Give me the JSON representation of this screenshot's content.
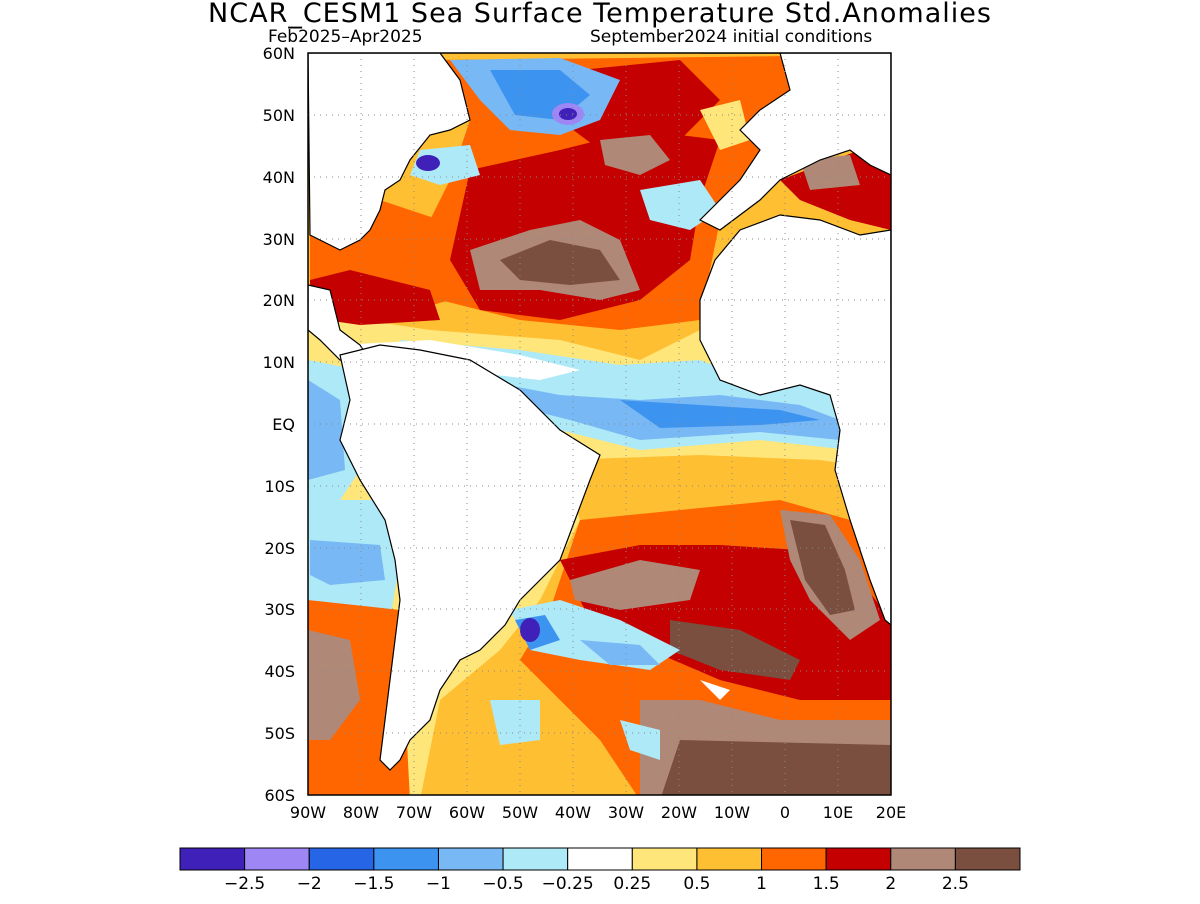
{
  "header": {
    "title": "NCAR_CESM1 Sea Surface Temperature Std.Anomalies",
    "period": "Feb2025–Apr2025",
    "init": "September2024 initial conditions"
  },
  "map": {
    "lat_labels": [
      "60N",
      "50N",
      "40N",
      "30N",
      "20N",
      "10N",
      "EQ",
      "10S",
      "20S",
      "30S",
      "40S",
      "50S",
      "60S"
    ],
    "lon_labels": [
      "90W",
      "80W",
      "70W",
      "60W",
      "50W",
      "40W",
      "30W",
      "20W",
      "10W",
      "0",
      "10E",
      "20E"
    ],
    "lat_range": [
      -60,
      60
    ],
    "lon_range": [
      -90,
      20
    ],
    "grid": "dotted"
  },
  "colorbar": {
    "colors": [
      "#3f20b8",
      "#9e87f5",
      "#2666e6",
      "#3d93f0",
      "#78b8f5",
      "#aee9f7",
      "#ffffff",
      "#ffe67a",
      "#ffbf33",
      "#ff6600",
      "#c40000",
      "#b08878",
      "#7a4f40"
    ],
    "labels": [
      "−2.5",
      "−2",
      "−1.5",
      "−1",
      "−0.5",
      "−0.25",
      "0.25",
      "0.5",
      "1",
      "1.5",
      "2",
      "2.5"
    ]
  }
}
